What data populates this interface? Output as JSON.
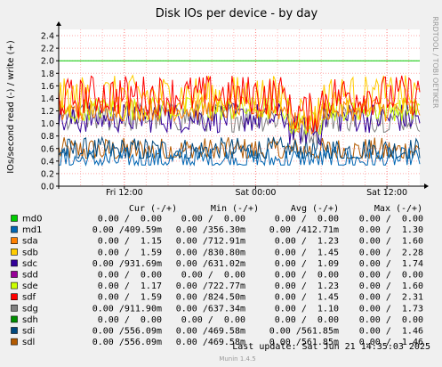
{
  "chart_data": {
    "type": "line",
    "title": "Disk IOs per device - by day",
    "ylabel": "IOs/second read (-) / write (+)",
    "ylim": [
      0,
      2.5
    ],
    "yticks": [
      "0.0",
      "0.2",
      "0.4",
      "0.6",
      "0.8",
      "1.0",
      "1.2",
      "1.4",
      "1.6",
      "1.8",
      "2.0",
      "2.2",
      "2.4"
    ],
    "xticks": [
      "Fri 12:00",
      "Sat 00:00",
      "Sat 12:00"
    ],
    "xtick_hours": [
      6,
      18,
      30
    ],
    "x_range_hours": [
      0,
      33
    ],
    "warning_line": 2.0,
    "grid": true,
    "side_label": "RRDTOOL / TOBI OETIKER",
    "series": [
      {
        "name": "md0",
        "color": "#00cc00",
        "cur": "0.00 /  0.00",
        "min": "0.00 /  0.00",
        "avg": "0.00 /  0.00",
        "max": "0.00 /  0.00"
      },
      {
        "name": "md1",
        "color": "#0066b3",
        "cur": "0.00 /409.59m",
        "min": "0.00 /356.30m",
        "avg": "0.00 /412.71m",
        "max": "0.00 /  1.30"
      },
      {
        "name": "sda",
        "color": "#ff8000",
        "cur": "0.00 /  1.15",
        "min": "0.00 /712.91m",
        "avg": "0.00 /  1.23",
        "max": "0.00 /  1.60"
      },
      {
        "name": "sdb",
        "color": "#ffcc00",
        "cur": "0.00 /  1.59",
        "min": "0.00 /830.80m",
        "avg": "0.00 /  1.45",
        "max": "0.00 /  2.28"
      },
      {
        "name": "sdc",
        "color": "#330099",
        "cur": "0.00 /931.69m",
        "min": "0.00 /631.02m",
        "avg": "0.00 /  1.09",
        "max": "0.00 /  1.74"
      },
      {
        "name": "sdd",
        "color": "#990099",
        "cur": "0.00 /  0.00",
        "min": "0.00 /  0.00",
        "avg": "0.00 /  0.00",
        "max": "0.00 /  0.00"
      },
      {
        "name": "sde",
        "color": "#ccff00",
        "cur": "0.00 /  1.17",
        "min": "0.00 /722.77m",
        "avg": "0.00 /  1.23",
        "max": "0.00 /  1.60"
      },
      {
        "name": "sdf",
        "color": "#ff0000",
        "cur": "0.00 /  1.59",
        "min": "0.00 /824.50m",
        "avg": "0.00 /  1.45",
        "max": "0.00 /  2.31"
      },
      {
        "name": "sdg",
        "color": "#808080",
        "cur": "0.00 /911.90m",
        "min": "0.00 /637.34m",
        "avg": "0.00 /  1.10",
        "max": "0.00 /  1.73"
      },
      {
        "name": "sdh",
        "color": "#008f00",
        "cur": "0.00 /  0.00",
        "min": "0.00 /  0.00",
        "avg": "0.00 /  0.00",
        "max": "0.00 /  0.00"
      },
      {
        "name": "sdi",
        "color": "#00487d",
        "cur": "0.00 /556.09m",
        "min": "0.00 /469.58m",
        "avg": "0.00 /561.85m",
        "max": "0.00 /  1.46"
      },
      {
        "name": "sdl",
        "color": "#b35a00",
        "cur": "0.00 /556.09m",
        "min": "0.00 /469.58m",
        "avg": "0.00 /561.85m",
        "max": "0.00 /  1.46"
      }
    ]
  },
  "legend_headers": {
    "cur": "Cur (-/+)",
    "min": "Min (-/+)",
    "avg": "Avg (-/+)",
    "max": "Max (-/+)"
  },
  "footer": {
    "last_update": "Last update:  Sat Jun 21 14:35:03 2025",
    "munin": "Munin 1.4.5"
  },
  "colors": {
    "background": "#f0f0f0",
    "plot_bg": "#ffffff",
    "grid": "#ff9999",
    "axis": "#000000"
  }
}
